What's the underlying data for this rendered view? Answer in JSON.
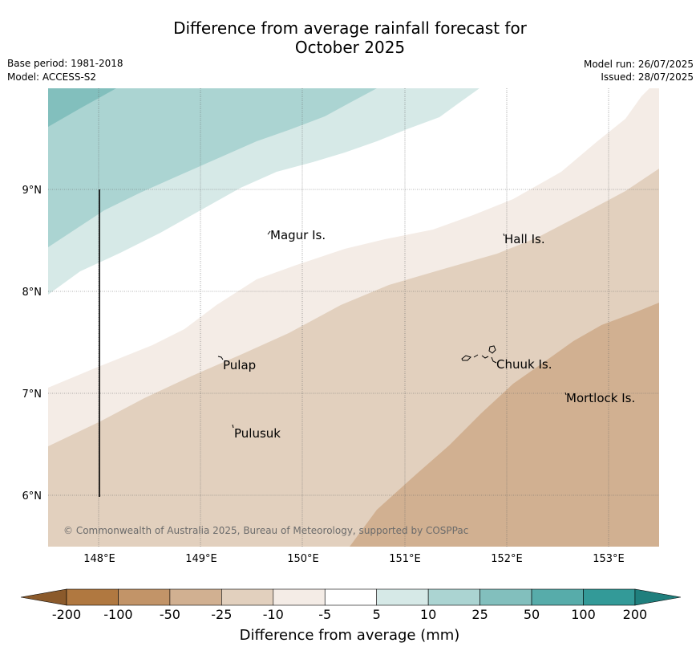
{
  "title_line1": "Difference from average rainfall forecast for",
  "title_line2": "October 2025",
  "meta": {
    "base_period": "Base period: 1981-2018",
    "model": "Model: ACCESS-S2",
    "model_run": "Model run: 26/07/2025",
    "issued": "Issued: 28/07/2025"
  },
  "map": {
    "lon_ticks": [
      "148°E",
      "149°E",
      "150°E",
      "151°E",
      "152°E",
      "153°E"
    ],
    "lat_ticks": [
      "9°N",
      "8°N",
      "7°N",
      "6°N"
    ],
    "places": [
      {
        "name": "Magur Is."
      },
      {
        "name": "Hall Is."
      },
      {
        "name": "Pulap"
      },
      {
        "name": "Chuuk Is."
      },
      {
        "name": "Mortlock Is."
      },
      {
        "name": "Pulusuk"
      }
    ],
    "credit": "© Commonwealth of Australia 2025, Bureau of Meteorology, supported by COSPPac"
  },
  "colorbar": {
    "title": "Difference from average (mm)",
    "labels": [
      "-200",
      "-100",
      "-50",
      "-25",
      "-10",
      "-5",
      "5",
      "10",
      "25",
      "50",
      "100",
      "200"
    ],
    "colors": [
      "#8b5a2b",
      "#b07840",
      "#c29468",
      "#d1b091",
      "#e2d0be",
      "#f4ece6",
      "#ffffff",
      "#d6e9e7",
      "#abd4d2",
      "#82bfbd",
      "#57acaa",
      "#339a98",
      "#1f7f7d"
    ]
  }
}
